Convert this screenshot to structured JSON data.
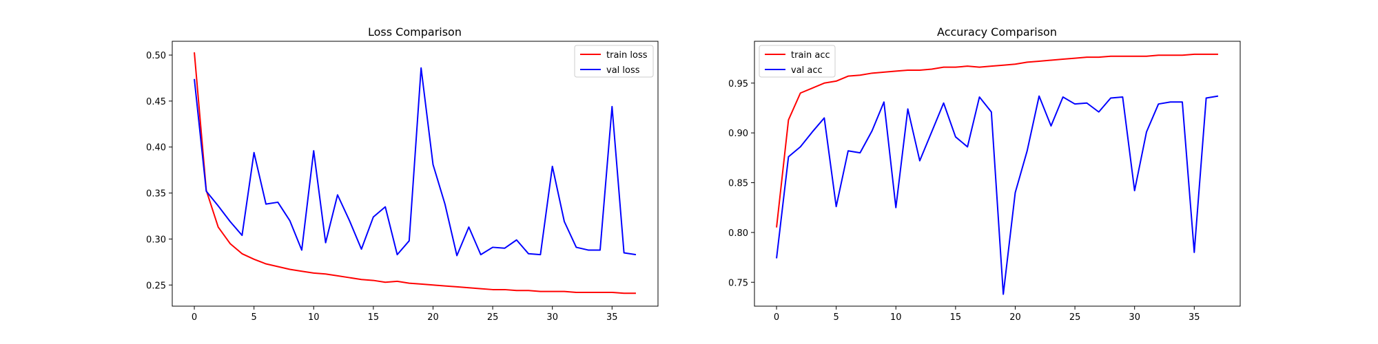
{
  "chart_data": [
    {
      "type": "line",
      "title": "Loss Comparison",
      "xlabel": "",
      "ylabel": "",
      "xlim": [
        -1.85,
        38.85
      ],
      "ylim": [
        0.227,
        0.515
      ],
      "xticks": [
        0,
        5,
        10,
        15,
        20,
        25,
        30,
        35
      ],
      "yticks": [
        0.25,
        0.3,
        0.35,
        0.4,
        0.45,
        0.5
      ],
      "ytick_labels": [
        "0.25",
        "0.30",
        "0.35",
        "0.40",
        "0.45",
        "0.50"
      ],
      "grid": false,
      "legend": "top-right",
      "x": [
        0,
        1,
        2,
        3,
        4,
        5,
        6,
        7,
        8,
        9,
        10,
        11,
        12,
        13,
        14,
        15,
        16,
        17,
        18,
        19,
        20,
        21,
        22,
        23,
        24,
        25,
        26,
        27,
        28,
        29,
        30,
        31,
        32,
        33,
        34,
        35,
        36,
        37
      ],
      "series": [
        {
          "name": "train loss",
          "color": "#ff0000",
          "values": [
            0.503,
            0.353,
            0.313,
            0.295,
            0.284,
            0.278,
            0.273,
            0.27,
            0.267,
            0.265,
            0.263,
            0.262,
            0.26,
            0.258,
            0.256,
            0.255,
            0.253,
            0.254,
            0.252,
            0.251,
            0.25,
            0.249,
            0.248,
            0.247,
            0.246,
            0.245,
            0.245,
            0.244,
            0.244,
            0.243,
            0.243,
            0.243,
            0.242,
            0.242,
            0.242,
            0.242,
            0.241,
            0.241
          ]
        },
        {
          "name": "val loss",
          "color": "#0000ff",
          "values": [
            0.474,
            0.352,
            0.336,
            0.319,
            0.304,
            0.394,
            0.338,
            0.34,
            0.32,
            0.288,
            0.396,
            0.296,
            0.348,
            0.32,
            0.289,
            0.324,
            0.335,
            0.283,
            0.298,
            0.486,
            0.381,
            0.338,
            0.282,
            0.313,
            0.283,
            0.291,
            0.29,
            0.299,
            0.284,
            0.283,
            0.379,
            0.319,
            0.291,
            0.288,
            0.288,
            0.444,
            0.285,
            0.283
          ]
        }
      ]
    },
    {
      "type": "line",
      "title": "Accuracy Comparison",
      "xlabel": "",
      "ylabel": "",
      "xlim": [
        -1.85,
        38.85
      ],
      "ylim": [
        0.726,
        0.992
      ],
      "xticks": [
        0,
        5,
        10,
        15,
        20,
        25,
        30,
        35
      ],
      "yticks": [
        0.75,
        0.8,
        0.85,
        0.9,
        0.95
      ],
      "ytick_labels": [
        "0.75",
        "0.80",
        "0.85",
        "0.90",
        "0.95"
      ],
      "grid": false,
      "legend": "top-left",
      "x": [
        0,
        1,
        2,
        3,
        4,
        5,
        6,
        7,
        8,
        9,
        10,
        11,
        12,
        13,
        14,
        15,
        16,
        17,
        18,
        19,
        20,
        21,
        22,
        23,
        24,
        25,
        26,
        27,
        28,
        29,
        30,
        31,
        32,
        33,
        34,
        35,
        36,
        37
      ],
      "series": [
        {
          "name": "train acc",
          "color": "#ff0000",
          "values": [
            0.805,
            0.913,
            0.94,
            0.945,
            0.95,
            0.952,
            0.957,
            0.958,
            0.96,
            0.961,
            0.962,
            0.963,
            0.963,
            0.964,
            0.966,
            0.966,
            0.967,
            0.966,
            0.967,
            0.968,
            0.969,
            0.971,
            0.972,
            0.973,
            0.974,
            0.975,
            0.976,
            0.976,
            0.977,
            0.977,
            0.977,
            0.977,
            0.978,
            0.978,
            0.978,
            0.979,
            0.979,
            0.979
          ]
        },
        {
          "name": "val acc",
          "color": "#0000ff",
          "values": [
            0.774,
            0.876,
            0.886,
            0.901,
            0.915,
            0.826,
            0.882,
            0.88,
            0.902,
            0.931,
            0.825,
            0.924,
            0.872,
            0.901,
            0.93,
            0.896,
            0.886,
            0.936,
            0.921,
            0.738,
            0.84,
            0.882,
            0.937,
            0.907,
            0.936,
            0.929,
            0.93,
            0.921,
            0.935,
            0.936,
            0.842,
            0.901,
            0.929,
            0.931,
            0.931,
            0.78,
            0.935,
            0.937
          ]
        }
      ]
    }
  ]
}
